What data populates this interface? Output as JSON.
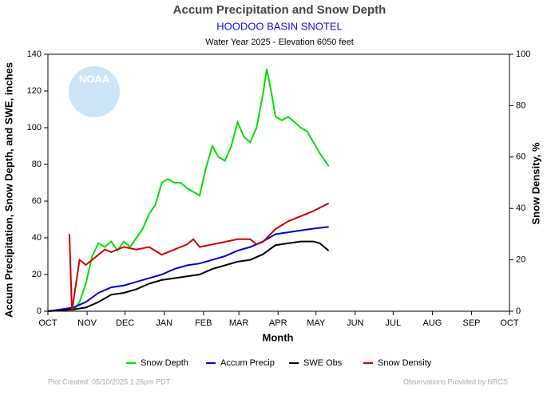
{
  "chart_data": {
    "type": "line",
    "title": "Accum Precipitation and Snow Depth",
    "subtitle": "HOODOO BASIN SNOTEL",
    "caption": "Water Year 2025 -  Elevation 6050 feet",
    "xlabel": "Month",
    "ylabel": "Accum Precipitation, Snow Depth, and SWE, inches",
    "y2label": "Snow Density, %",
    "footer_left": "Plot Created: 05/10/2025 1:26pm PDT",
    "footer_right": "Observations Provided by NRCS",
    "xlim": [
      0,
      365
    ],
    "xticks": [
      {
        "value": 0,
        "label": "OCT"
      },
      {
        "value": 31,
        "label": "NOV"
      },
      {
        "value": 61,
        "label": "DEC"
      },
      {
        "value": 92,
        "label": "JAN"
      },
      {
        "value": 123,
        "label": "FEB"
      },
      {
        "value": 151,
        "label": "MAR"
      },
      {
        "value": 182,
        "label": "APR"
      },
      {
        "value": 212,
        "label": "MAY"
      },
      {
        "value": 243,
        "label": "JUN"
      },
      {
        "value": 273,
        "label": "JUL"
      },
      {
        "value": 304,
        "label": "AUG"
      },
      {
        "value": 335,
        "label": "SEP"
      },
      {
        "value": 365,
        "label": "OCT"
      }
    ],
    "ylim": [
      0,
      140
    ],
    "yticks": [
      0,
      20,
      40,
      60,
      80,
      100,
      120,
      140
    ],
    "y2lim": [
      0,
      100
    ],
    "y2ticks": [
      0,
      20,
      40,
      60,
      80,
      100
    ],
    "legend": "bottom",
    "series": [
      {
        "name": "Snow Depth",
        "color": "#00e000",
        "x": [
          20,
          25,
          30,
          35,
          40,
          45,
          50,
          55,
          60,
          65,
          70,
          75,
          80,
          85,
          90,
          95,
          100,
          105,
          110,
          115,
          120,
          125,
          130,
          135,
          140,
          145,
          150,
          155,
          160,
          165,
          170,
          173,
          177,
          180,
          185,
          190,
          195,
          200,
          205,
          210,
          215,
          222
        ],
        "values": [
          0,
          5,
          15,
          30,
          37,
          35,
          38,
          33,
          38,
          35,
          40,
          45,
          53,
          58,
          70,
          72,
          70,
          70,
          67,
          65,
          63,
          78,
          90,
          84,
          82,
          90,
          103,
          95,
          92,
          100,
          118,
          132,
          118,
          106,
          104,
          106,
          103,
          100,
          98,
          92,
          86,
          79
        ]
      },
      {
        "name": "Accum Precip",
        "color": "#0000cc",
        "x": [
          0,
          10,
          20,
          30,
          40,
          50,
          60,
          70,
          80,
          90,
          100,
          110,
          120,
          130,
          140,
          150,
          160,
          170,
          180,
          190,
          200,
          210,
          222
        ],
        "values": [
          0,
          1,
          2,
          5,
          10,
          13,
          14,
          16,
          18,
          20,
          23,
          25,
          26,
          28,
          30,
          33,
          35,
          38,
          42,
          43,
          44,
          45,
          46
        ]
      },
      {
        "name": "SWE Obs",
        "color": "#000000",
        "x": [
          0,
          10,
          20,
          30,
          40,
          50,
          60,
          70,
          80,
          90,
          100,
          110,
          120,
          130,
          140,
          150,
          160,
          170,
          180,
          190,
          200,
          210,
          215,
          222
        ],
        "values": [
          0,
          0.5,
          1,
          2,
          5,
          9,
          10,
          12,
          15,
          17,
          18,
          19,
          20,
          23,
          25,
          27,
          28,
          31,
          36,
          37,
          38,
          38,
          37,
          33
        ]
      },
      {
        "name": "Snow Density",
        "color": "#cc0000",
        "axis": "y2",
        "x": [
          17,
          19,
          22,
          25,
          30,
          35,
          40,
          45,
          50,
          60,
          70,
          80,
          90,
          100,
          110,
          115,
          120,
          130,
          140,
          150,
          160,
          165,
          170,
          180,
          190,
          200,
          210,
          222
        ],
        "values": [
          30,
          0,
          10,
          20,
          18,
          20,
          22,
          24,
          23,
          25,
          24,
          25,
          22,
          24,
          26,
          28,
          25,
          26,
          27,
          28,
          28,
          26,
          27,
          32,
          35,
          37,
          39,
          42
        ]
      }
    ]
  }
}
